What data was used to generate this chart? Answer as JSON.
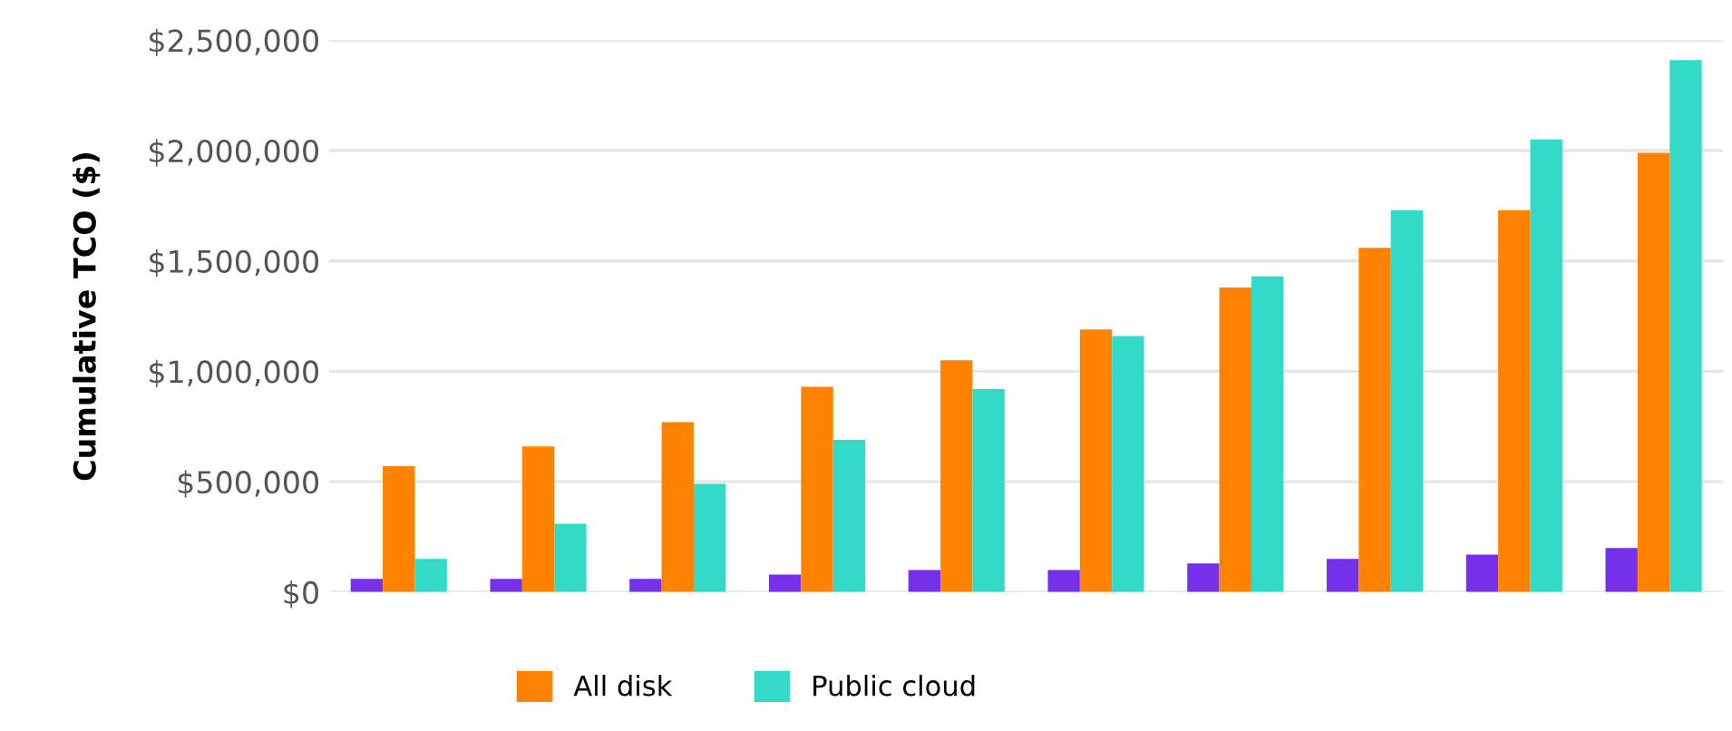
{
  "chart_data": {
    "type": "bar",
    "ylabel": "Cumulative TCO ($)",
    "categories": [
      null,
      null,
      null,
      null,
      null,
      null,
      null,
      null,
      null,
      null
    ],
    "series": [
      {
        "color": "#7630ea",
        "values": [
          60000,
          60000,
          60000,
          80000,
          100000,
          100000,
          130000,
          150000,
          170000,
          200000
        ]
      },
      {
        "name": "All disk",
        "color": "#ff8300",
        "values": [
          570000,
          660000,
          770000,
          930000,
          1050000,
          1190000,
          1380000,
          1560000,
          1730000,
          1990000
        ]
      },
      {
        "name": "Public cloud",
        "color": "#32dac8",
        "values": [
          150000,
          310000,
          490000,
          690000,
          920000,
          1160000,
          1430000,
          1730000,
          2050000,
          2410000
        ]
      }
    ],
    "ylim": [
      0,
      2500000
    ],
    "yticks": [
      {
        "value": 0,
        "label": "$0"
      },
      {
        "value": 500000,
        "label": "$500,000"
      },
      {
        "value": 1000000,
        "label": "$1,000,000"
      },
      {
        "value": 1500000,
        "label": "$1,500,000"
      },
      {
        "value": 2000000,
        "label": "$2,000,000"
      },
      {
        "value": 2500000,
        "label": "$2,500,000"
      }
    ],
    "grid": "y",
    "legend": "bottom"
  }
}
